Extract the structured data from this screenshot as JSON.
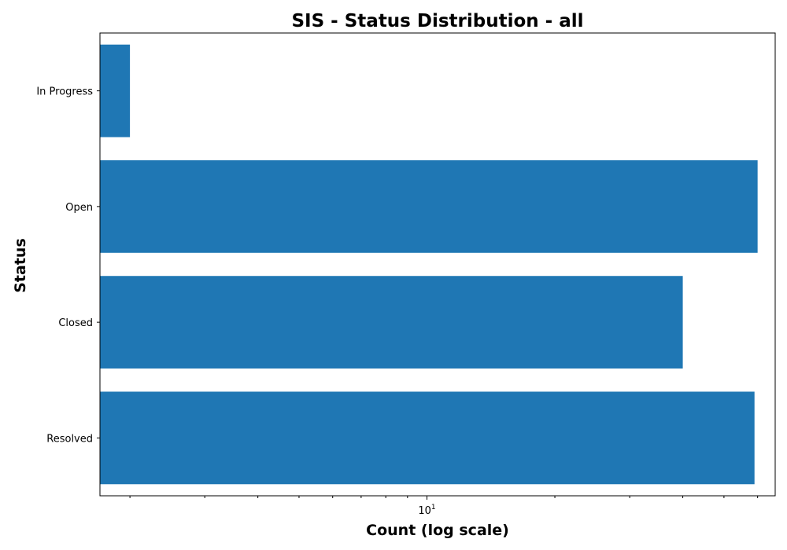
{
  "chart_data": {
    "type": "bar",
    "orientation": "horizontal",
    "title": "SIS - Status Distribution - all",
    "xlabel": "Count (log scale)",
    "ylabel": "Status",
    "x_scale": "log",
    "xlim": [
      1.7,
      66
    ],
    "categories": [
      "In Progress",
      "Open",
      "Closed",
      "Resolved"
    ],
    "values": [
      2,
      60,
      40,
      59
    ],
    "x_major_ticks": [
      10
    ],
    "x_major_tick_labels": [
      {
        "base": "10",
        "exponent": "1"
      }
    ],
    "x_minor_ticks": [
      2,
      3,
      4,
      5,
      6,
      7,
      8,
      9,
      20,
      30,
      40,
      50,
      60
    ],
    "bar_color": "#1f77b4",
    "grid": false,
    "legend": "none"
  }
}
